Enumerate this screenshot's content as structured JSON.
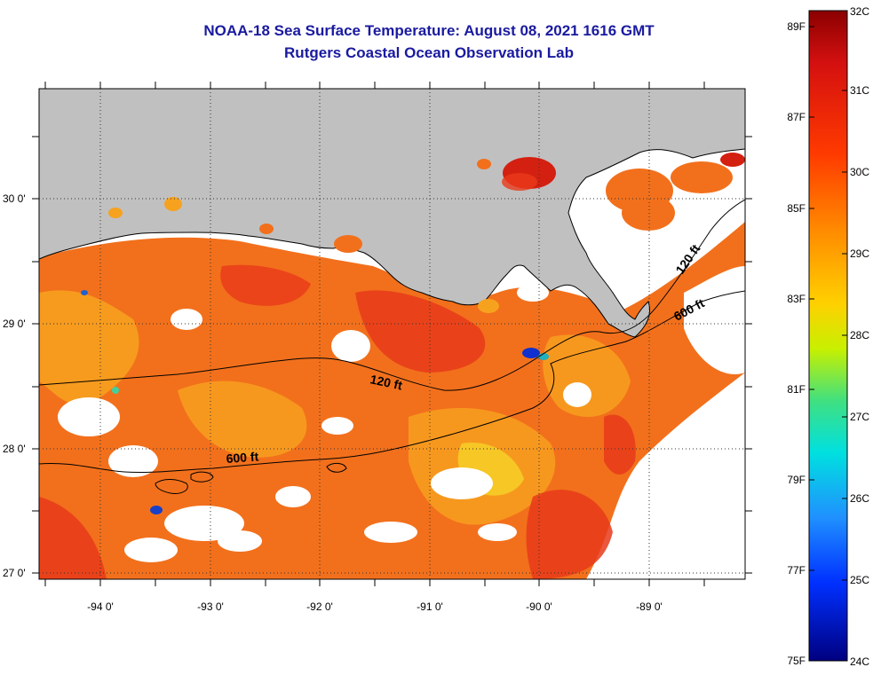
{
  "title": {
    "line1": "NOAA-18 Sea Surface Temperature:  August 08, 2021 1616 GMT",
    "line2": "Rutgers Coastal Ocean Observation Lab"
  },
  "map": {
    "y_labels": [
      "30 0'",
      "29 0'",
      "28 0'",
      "27 0'"
    ],
    "x_labels": [
      "-94 0'",
      "-93 0'",
      "-92 0'",
      "-91 0'",
      "-90 0'",
      "-89 0'"
    ],
    "contour_labels": [
      "120 ft",
      "600 ft",
      "120 ft",
      "600 ft"
    ],
    "colors": {
      "land": "#c0c0c0",
      "cloud": "#ffffff",
      "warm_deep": "#e8391a",
      "warm_mid": "#f2701c",
      "warm_light": "#f7a21f",
      "cool_yellow": "#f5dc28"
    }
  },
  "colorbar": {
    "celsius_labels": [
      "32C",
      "31C",
      "30C",
      "29C",
      "28C",
      "27C",
      "26C",
      "25C",
      "24C"
    ],
    "fahrenheit_labels": [
      "89F",
      "87F",
      "85F",
      "83F",
      "81F",
      "79F",
      "77F",
      "75F"
    ]
  }
}
